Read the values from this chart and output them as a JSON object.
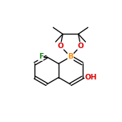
{
  "background_color": "#ffffff",
  "bond_color": "#000000",
  "atom_colors": {
    "B": "#ff8c00",
    "O": "#dd0000",
    "F": "#228b22",
    "OH": "#dd0000",
    "C": "#000000"
  },
  "figsize": [
    1.52,
    1.52
  ],
  "dpi": 100,
  "xlim": [
    0,
    10
  ],
  "ylim": [
    0,
    10
  ]
}
